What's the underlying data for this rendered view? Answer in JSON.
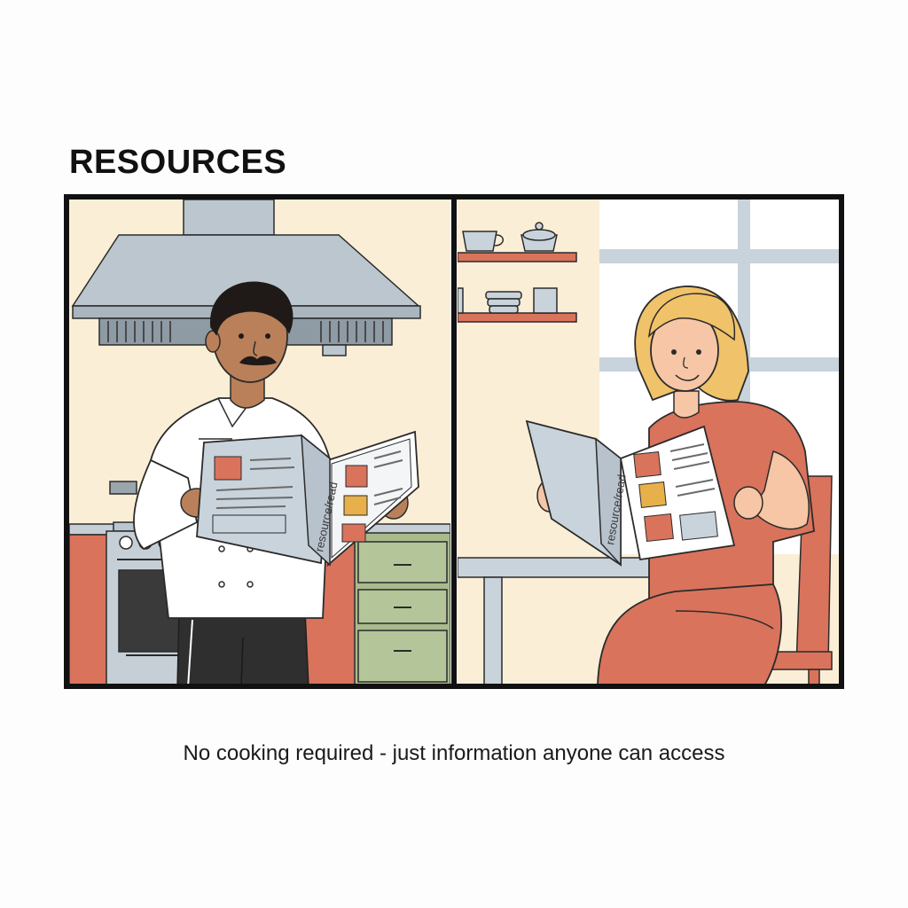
{
  "heading": "RESOURCES",
  "caption": "No cooking required - just information anyone can access",
  "book_spine_label": "resource/read",
  "colors": {
    "frame": "#111111",
    "wall": "#fbeed6",
    "hood": "#bcc6cf",
    "cabinet_green": "#a9bb8c",
    "terracotta": "#d9735c",
    "book_cover": "#c9d3dc",
    "skin_dark": "#b9805a",
    "skin_light": "#f6c6a6",
    "hair_blonde": "#f0c26a"
  },
  "panels": [
    {
      "scene": "chef-reading-in-kitchen"
    },
    {
      "scene": "woman-reading-at-table"
    }
  ]
}
